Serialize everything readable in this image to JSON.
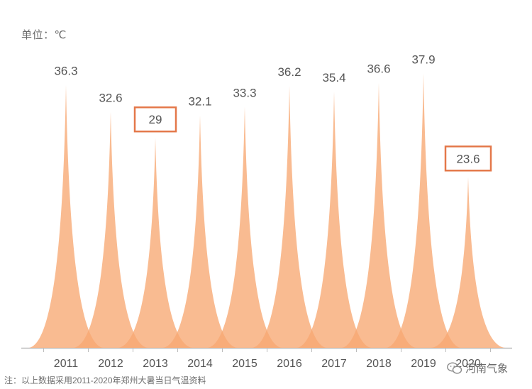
{
  "header": {
    "unit_label": "单位：℃"
  },
  "footer": {
    "note": "注：以上数据采用2011-2020年郑州大暑当日气温资料",
    "watermark": "河南气象",
    "watermark_icon": "wechat-icon"
  },
  "colors": {
    "peak_fill": "#f7a872",
    "axis": "#bdbdbd",
    "label_text": "#555555",
    "highlight_box": "#e4784a"
  },
  "chart_data": {
    "type": "bar",
    "categories": [
      "2011",
      "2012",
      "2013",
      "2014",
      "2015",
      "2016",
      "2017",
      "2018",
      "2019",
      "2020"
    ],
    "values": [
      36.3,
      32.6,
      29,
      32.1,
      33.3,
      36.2,
      35.4,
      36.6,
      37.9,
      23.6
    ],
    "value_labels": [
      "36.3",
      "32.6",
      "29",
      "32.1",
      "33.3",
      "36.2",
      "35.4",
      "36.6",
      "37.9",
      "23.6"
    ],
    "highlighted": [
      "2013",
      "2020"
    ],
    "ylabel": "单位：℃",
    "ylim": [
      0,
      40
    ],
    "grid": false,
    "legend": "none"
  }
}
